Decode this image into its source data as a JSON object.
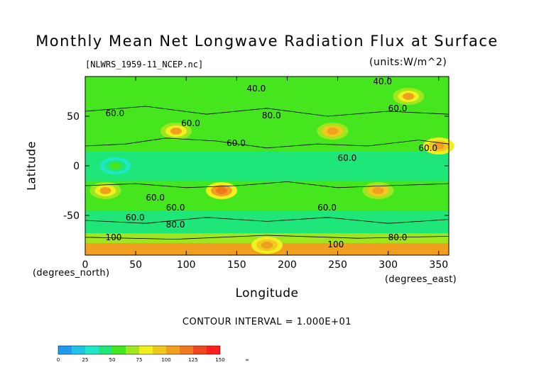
{
  "chart_data": {
    "type": "heatmap",
    "title": "Monthly Mean Net Longwave Radiation Flux at Surface",
    "file_label": "[NLWRS_1959-11_NCEP.nc]",
    "units_label": "(units:W/m^2)",
    "xlabel": "Longitude",
    "ylabel": "Latitude",
    "x_unit_label": "(degrees_east)",
    "y_unit_label": "(degrees_north)",
    "xlim": [
      0,
      360
    ],
    "ylim": [
      -90,
      90
    ],
    "x_ticks": [
      0,
      50,
      100,
      150,
      200,
      250,
      300,
      350
    ],
    "y_ticks": [
      50,
      0,
      -50
    ],
    "contour_interval_label": "CONTOUR INTERVAL = 1.000E+01",
    "contour_labels": [
      "40.0",
      "60.0",
      "60.0",
      "80.0",
      "60.0",
      "60.0",
      "60.0",
      "60.0",
      "60.0",
      "60.0",
      "60.0",
      "80.0",
      "100",
      "100",
      "80.0",
      "40.0",
      "60.0"
    ],
    "colorbar": {
      "colors": [
        "#1e9bf0",
        "#1ec4e6",
        "#1ee6c8",
        "#1ee678",
        "#46e61e",
        "#a0e61e",
        "#f0f01e",
        "#f0c81e",
        "#f0a01e",
        "#f0781e",
        "#f0461e",
        "#ff1e1e"
      ],
      "tick_labels": [
        "0",
        "25",
        "50",
        "75",
        "100",
        "125",
        "150",
        "∞"
      ]
    },
    "regions": [
      {
        "lon": 30,
        "lat": 0,
        "value": 50
      },
      {
        "lon": 90,
        "lat": 35,
        "value": 100
      },
      {
        "lon": 135,
        "lat": -25,
        "value": 120
      },
      {
        "lon": 245,
        "lat": 35,
        "value": 105
      },
      {
        "lon": 350,
        "lat": 20,
        "value": 110
      },
      {
        "lon": 20,
        "lat": -25,
        "value": 100
      },
      {
        "lon": 290,
        "lat": -25,
        "value": 105
      },
      {
        "lon": 320,
        "lat": 70,
        "value": 100
      },
      {
        "lon": 180,
        "lat": -80,
        "value": 110
      }
    ]
  }
}
